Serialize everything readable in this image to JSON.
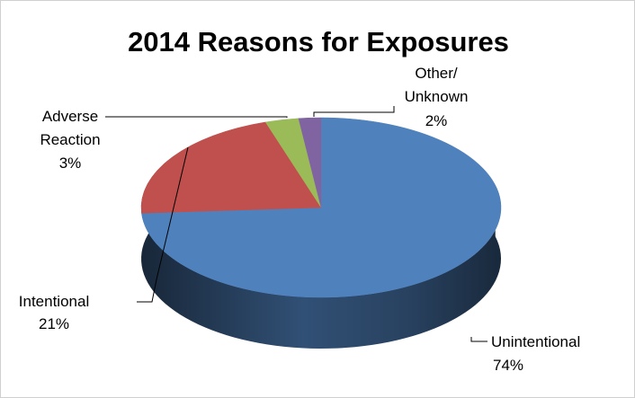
{
  "chart_data": {
    "type": "pie",
    "title": "2014 Reasons for Exposures",
    "slices": [
      {
        "label": "Unintentional",
        "value": 74,
        "value_label": "74%",
        "color": "#4f81bd"
      },
      {
        "label": "Intentional",
        "value": 21,
        "value_label": "21%",
        "color": "#c0504d"
      },
      {
        "label": "Adverse Reaction",
        "value": 3,
        "value_label": "3%",
        "color": "#9bbb59"
      },
      {
        "label": "Other/ Unknown",
        "value": 2,
        "value_label": "2%",
        "color": "#8064a2"
      }
    ],
    "style": "3d",
    "legend": "none"
  }
}
